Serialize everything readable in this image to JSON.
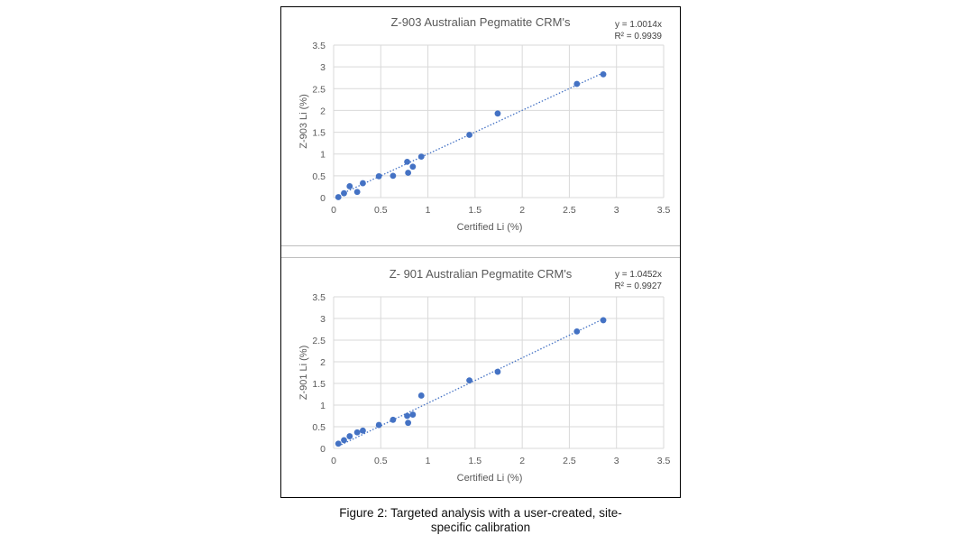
{
  "chart_data": [
    {
      "type": "scatter",
      "title": "Z-903 Australian Pegmatite CRM's",
      "equation": "y = 1.0014x",
      "r2": "R² = 0.9939",
      "xlabel": "Certified Li (%)",
      "ylabel": "Z-903 Li (%)",
      "xlim": [
        0,
        3.5
      ],
      "ylim": [
        0,
        3.5
      ],
      "xticks": [
        "0",
        "0.5",
        "1",
        "1.5",
        "2",
        "2.5",
        "3",
        "3.5"
      ],
      "yticks": [
        "0",
        "0.5",
        "1",
        "1.5",
        "2",
        "2.5",
        "3",
        "3.5"
      ],
      "grid": true,
      "trendline_slope": 1.0014,
      "color": "#4472c4",
      "points": [
        {
          "x": 0.05,
          "y": 0.01
        },
        {
          "x": 0.11,
          "y": 0.1
        },
        {
          "x": 0.17,
          "y": 0.26
        },
        {
          "x": 0.25,
          "y": 0.13
        },
        {
          "x": 0.31,
          "y": 0.33
        },
        {
          "x": 0.48,
          "y": 0.49
        },
        {
          "x": 0.63,
          "y": 0.5
        },
        {
          "x": 0.78,
          "y": 0.82
        },
        {
          "x": 0.79,
          "y": 0.57
        },
        {
          "x": 0.84,
          "y": 0.71
        },
        {
          "x": 0.93,
          "y": 0.94
        },
        {
          "x": 1.44,
          "y": 1.44
        },
        {
          "x": 1.74,
          "y": 1.93
        },
        {
          "x": 2.58,
          "y": 2.61
        },
        {
          "x": 2.86,
          "y": 2.83
        }
      ]
    },
    {
      "type": "scatter",
      "title": "Z- 901 Australian Pegmatite CRM's",
      "equation": "y = 1.0452x",
      "r2": "R² = 0.9927",
      "xlabel": "Certified Li (%)",
      "ylabel": "Z-901 Li (%)",
      "xlim": [
        0,
        3.5
      ],
      "ylim": [
        0,
        3.5
      ],
      "xticks": [
        "0",
        "0.5",
        "1",
        "1.5",
        "2",
        "2.5",
        "3",
        "3.5"
      ],
      "yticks": [
        "0",
        "0.5",
        "1",
        "1.5",
        "2",
        "2.5",
        "3",
        "3.5"
      ],
      "grid": true,
      "trendline_slope": 1.0452,
      "color": "#4472c4",
      "points": [
        {
          "x": 0.05,
          "y": 0.11
        },
        {
          "x": 0.11,
          "y": 0.19
        },
        {
          "x": 0.17,
          "y": 0.28
        },
        {
          "x": 0.25,
          "y": 0.37
        },
        {
          "x": 0.31,
          "y": 0.41
        },
        {
          "x": 0.48,
          "y": 0.54
        },
        {
          "x": 0.63,
          "y": 0.66
        },
        {
          "x": 0.78,
          "y": 0.75
        },
        {
          "x": 0.79,
          "y": 0.59
        },
        {
          "x": 0.84,
          "y": 0.78
        },
        {
          "x": 0.93,
          "y": 1.22
        },
        {
          "x": 1.44,
          "y": 1.57
        },
        {
          "x": 1.74,
          "y": 1.77
        },
        {
          "x": 2.58,
          "y": 2.7
        },
        {
          "x": 2.86,
          "y": 2.96
        }
      ]
    }
  ],
  "caption": {
    "line1": "Figure 2: Targeted analysis with a user-created, site-",
    "line2": "specific calibration"
  }
}
